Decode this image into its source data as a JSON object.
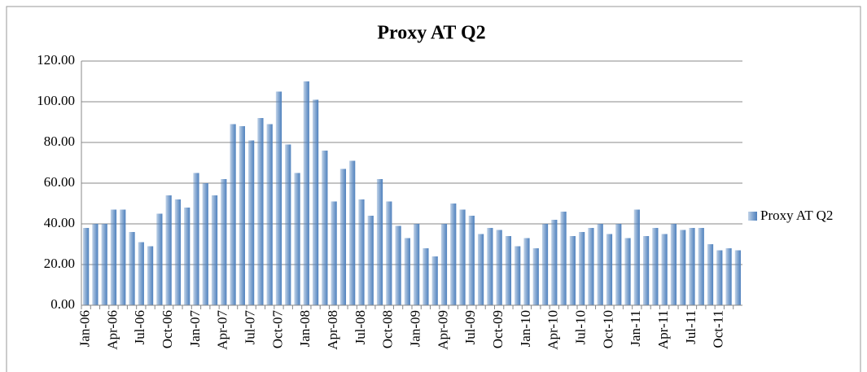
{
  "chart_data": {
    "type": "bar",
    "title": "Proxy AT Q2",
    "categories": [
      "Jan-06",
      null,
      null,
      "Apr-06",
      null,
      null,
      "Jul-06",
      null,
      null,
      "Oct-06",
      null,
      null,
      "Jan-07",
      null,
      null,
      "Apr-07",
      null,
      null,
      "Jul-07",
      null,
      null,
      "Oct-07",
      null,
      null,
      "Jan-08",
      null,
      null,
      "Apr-08",
      null,
      null,
      "Jul-08",
      null,
      null,
      "Oct-08",
      null,
      null,
      "Jan-09",
      null,
      null,
      "Apr-09",
      null,
      null,
      "Jul-09",
      null,
      null,
      "Oct-09",
      null,
      null,
      "Jan-10",
      null,
      null,
      "Apr-10",
      null,
      null,
      "Jul-10",
      null,
      null,
      "Oct-10",
      null,
      null,
      "Jan-11",
      null,
      null,
      "Apr-11",
      null,
      null,
      "Jul-11",
      null,
      null,
      "Oct-11",
      null,
      null
    ],
    "series": [
      {
        "name": "Proxy AT Q2",
        "color": "#4f81bd",
        "values": [
          38,
          40,
          40,
          47,
          47,
          36,
          31,
          29,
          45,
          54,
          52,
          48,
          65,
          60,
          54,
          62,
          89,
          88,
          81,
          92,
          89,
          105,
          79,
          65,
          110,
          101,
          76,
          51,
          67,
          71,
          52,
          44,
          62,
          51,
          39,
          33,
          40,
          28,
          24,
          40,
          50,
          47,
          44,
          35,
          38,
          37,
          34,
          29,
          33,
          28,
          40,
          42,
          46,
          34,
          36,
          38,
          40,
          35,
          40,
          33,
          47,
          34,
          38,
          35,
          40,
          37,
          38,
          38,
          30,
          27,
          28,
          27
        ]
      }
    ],
    "ylim": [
      0,
      120
    ],
    "yticks": [
      {
        "value": 0,
        "label": "0.00"
      },
      {
        "value": 20,
        "label": "20.00"
      },
      {
        "value": 40,
        "label": "40.00"
      },
      {
        "value": 60,
        "label": "60.00"
      },
      {
        "value": 80,
        "label": "80.00"
      },
      {
        "value": 100,
        "label": "100.00"
      },
      {
        "value": 120,
        "label": "120.00"
      }
    ],
    "grid": true,
    "legend": "right"
  }
}
